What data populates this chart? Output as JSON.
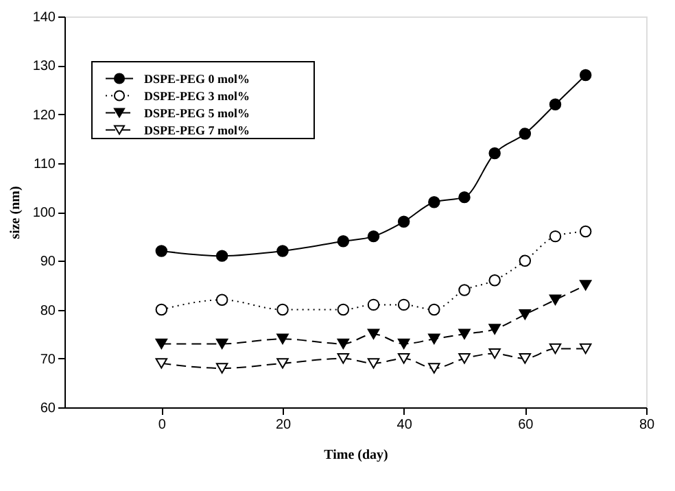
{
  "chart_data": {
    "type": "line",
    "xlabel": "Time (day)",
    "ylabel": "size (nm)",
    "x": [
      0,
      10,
      20,
      30,
      35,
      40,
      45,
      50,
      55,
      60,
      65,
      70
    ],
    "series": [
      {
        "name": "DSPE-PEG 0 mol%",
        "color": "#000000",
        "marker": "circle",
        "line_style": "solid",
        "values": [
          92,
          91,
          92,
          94,
          95,
          98,
          102,
          103,
          112,
          116,
          122,
          128
        ]
      },
      {
        "name": "DSPE-PEG 3 mol%",
        "color": "#ffffff",
        "marker": "circle",
        "line_style": "dotted",
        "values": [
          80,
          82,
          80,
          80,
          81,
          81,
          80,
          84,
          86,
          90,
          95,
          96
        ]
      },
      {
        "name": "DSPE-PEG 5 mol%",
        "color": "#000000",
        "marker": "triangle",
        "line_style": "dashed",
        "values": [
          73,
          73,
          74,
          73,
          75,
          73,
          74,
          75,
          76,
          79,
          82,
          85
        ]
      },
      {
        "name": "DSPE-PEG 7 mol%",
        "color": "#ffffff",
        "marker": "triangle",
        "line_style": "dashed",
        "values": [
          69,
          68,
          69,
          70,
          69,
          70,
          68,
          70,
          71,
          70,
          72,
          72
        ]
      }
    ],
    "xlim": [
      -16,
      80
    ],
    "xticks": [
      0,
      20,
      40,
      60,
      80
    ],
    "ylim": [
      60,
      140
    ],
    "yticks": [
      60,
      70,
      80,
      90,
      100,
      110,
      120,
      130,
      140
    ],
    "grid": false,
    "legend": "top left"
  }
}
